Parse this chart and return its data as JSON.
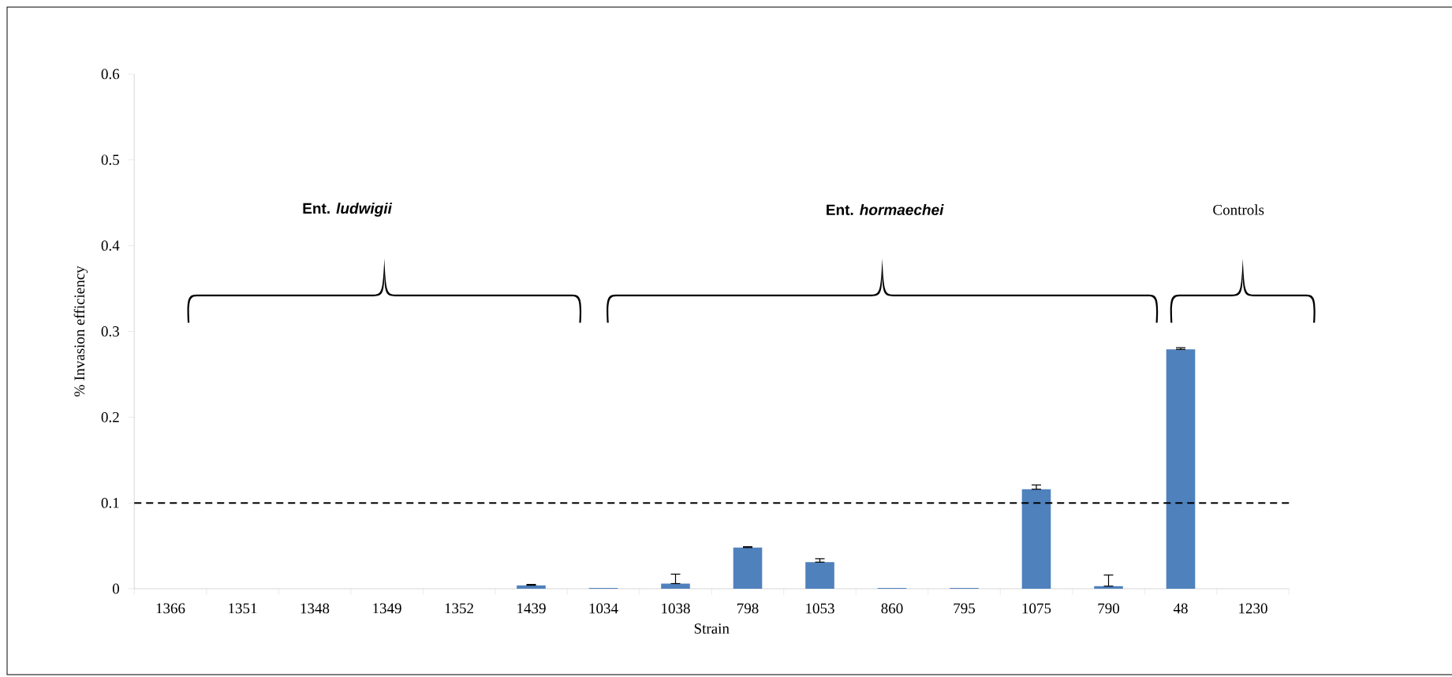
{
  "chart_data": {
    "type": "bar",
    "xlabel": "Strain",
    "ylabel": "% Invasion efficiency",
    "categories": [
      "1366",
      "1351",
      "1348",
      "1349",
      "1352",
      "1439",
      "1034",
      "1038",
      "798",
      "1053",
      "860",
      "795",
      "1075",
      "790",
      "48",
      "1230"
    ],
    "values": [
      0,
      0,
      0,
      0,
      0,
      0.004,
      0.001,
      0.006,
      0.048,
      0.031,
      0.001,
      0.001,
      0.116,
      0.003,
      0.279,
      0
    ],
    "errors": [
      null,
      null,
      null,
      null,
      null,
      [
        0.004,
        0.005
      ],
      null,
      [
        0.006,
        0.017
      ],
      [
        0.048,
        0.049
      ],
      [
        0.031,
        0.035
      ],
      null,
      null,
      [
        0.116,
        0.121
      ],
      [
        0.003,
        0.016
      ],
      [
        0.279,
        0.281
      ],
      null
    ],
    "color": "#4f81bd",
    "ylim": [
      0,
      0.6
    ],
    "yticks": [
      0,
      0.1,
      0.2,
      0.3,
      0.4,
      0.5,
      0.6
    ],
    "grid": false,
    "ref_lines": [
      {
        "axis": "y",
        "value": 0.1,
        "color": "#000000",
        "line_style": "dashed"
      }
    ],
    "annotations": [
      "Ent. *ludwigii*",
      "Ent. *hormaechei*",
      "Controls"
    ]
  }
}
